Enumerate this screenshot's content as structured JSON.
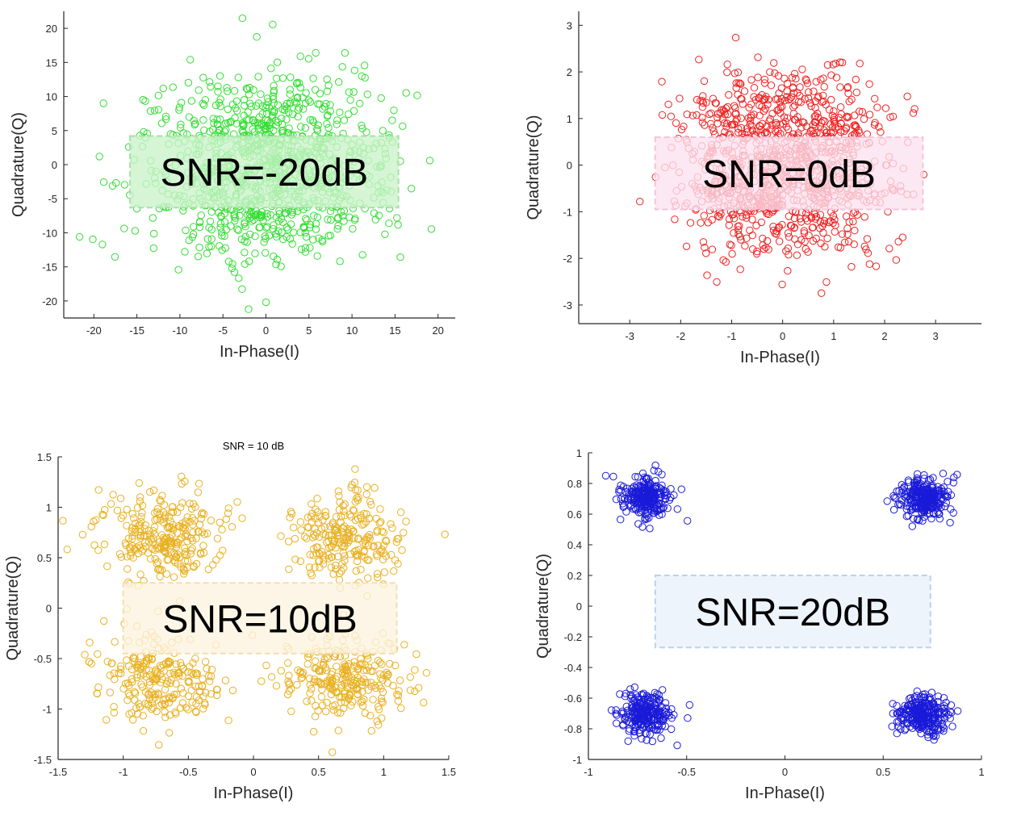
{
  "chart_data": [
    {
      "type": "scatter",
      "title": "",
      "xlabel": "In-Phase(I)",
      "ylabel": "Quadrature(Q)",
      "xlim": [
        -23.5,
        22
      ],
      "ylim": [
        -22.5,
        22.5
      ],
      "xticks": [
        -20,
        -15,
        -10,
        -5,
        0,
        5,
        10,
        15,
        20
      ],
      "yticks": [
        -20,
        -15,
        -10,
        -5,
        0,
        5,
        10,
        15,
        20
      ],
      "xtick_labels": [
        "-20",
        "-15",
        "-10",
        "-5",
        "0",
        "5",
        "10",
        "15",
        "20"
      ],
      "ytick_labels": [
        "-20",
        "-15",
        "-10",
        "-5",
        "0",
        "5",
        "10",
        "15",
        "20"
      ],
      "marker_color": "#33dd33",
      "annotation": {
        "text": "SNR=-20dB",
        "fill": "#c9f2c9",
        "border": "#a8e0a8",
        "x0": -15.8,
        "x1": 15.4,
        "y0": -6.3,
        "y1": 4.2
      },
      "constellation": [
        [
          0,
          0
        ]
      ],
      "noise_sigma": 6.8,
      "num_points": 1000,
      "seed": 11
    },
    {
      "type": "scatter",
      "title": "",
      "xlabel": "In-Phase(I)",
      "ylabel": "Quadrature(Q)",
      "xlim": [
        -4,
        3.9
      ],
      "ylim": [
        -3.4,
        3.3
      ],
      "xticks": [
        -3,
        -2,
        -1,
        0,
        1,
        2,
        3
      ],
      "yticks": [
        -3,
        -2,
        -1,
        0,
        1,
        2,
        3
      ],
      "xtick_labels": [
        "-3",
        "-2",
        "-1",
        "0",
        "1",
        "2",
        "3"
      ],
      "ytick_labels": [
        "-3",
        "-2",
        "-1",
        "0",
        "1",
        "2",
        "3"
      ],
      "marker_color": "#ee2222",
      "annotation": {
        "text": "SNR=0dB",
        "fill": "#fbe1ee",
        "border": "#f4c4d8",
        "x0": -2.5,
        "x1": 2.75,
        "y0": -0.95,
        "y1": 0.6
      },
      "constellation": [
        [
          0.707,
          0.707
        ],
        [
          -0.707,
          0.707
        ],
        [
          0.707,
          -0.707
        ],
        [
          -0.707,
          -0.707
        ]
      ],
      "noise_sigma": 0.72,
      "num_points": 1000,
      "seed": 23
    },
    {
      "type": "scatter",
      "title": "SNR = 10 dB",
      "xlabel": "In-Phase(I)",
      "ylabel": "Quadrature(Q)",
      "xlim": [
        -1.5,
        1.5
      ],
      "ylim": [
        -1.5,
        1.5
      ],
      "xticks": [
        -1.5,
        -1,
        -0.5,
        0,
        0.5,
        1,
        1.5
      ],
      "yticks": [
        -1.5,
        -1,
        -0.5,
        0,
        0.5,
        1,
        1.5
      ],
      "xtick_labels": [
        "-1.5",
        "-1",
        "-0.5",
        "0",
        "0.5",
        "1",
        "1.5"
      ],
      "ytick_labels": [
        "-1.5",
        "-1",
        "-0.5",
        "0",
        "0.5",
        "1",
        "1.5"
      ],
      "marker_color": "#e8b020",
      "annotation": {
        "text": "SNR=10dB",
        "fill": "#fdf3df",
        "border": "#f3deb0",
        "x0": -1.0,
        "x1": 1.1,
        "y0": -0.45,
        "y1": 0.25
      },
      "constellation": [
        [
          0.707,
          0.707
        ],
        [
          -0.707,
          0.707
        ],
        [
          0.707,
          -0.707
        ],
        [
          -0.707,
          -0.707
        ]
      ],
      "noise_sigma": 0.225,
      "num_points": 1000,
      "seed": 37
    },
    {
      "type": "scatter",
      "title": "",
      "xlabel": "In-Phase(I)",
      "ylabel": "Quadrature(Q)",
      "xlim": [
        -1,
        1
      ],
      "ylim": [
        -1,
        1
      ],
      "xticks": [
        -1,
        -0.5,
        0,
        0.5,
        1
      ],
      "yticks": [
        -1,
        -0.8,
        -0.6,
        -0.4,
        -0.2,
        0,
        0.2,
        0.4,
        0.6,
        0.8,
        1
      ],
      "xtick_labels": [
        "-1",
        "-0.5",
        "0",
        "0.5",
        "1"
      ],
      "ytick_labels": [
        "-1",
        "-0.8",
        "-0.6",
        "-0.4",
        "-0.2",
        "0",
        "0.2",
        "0.4",
        "0.6",
        "0.8",
        "1"
      ],
      "marker_color": "#1a1ad8",
      "annotation": {
        "text": "SNR=20dB",
        "fill": "#e9f1fb",
        "border": "#b7d3ee",
        "x0": -0.66,
        "x1": 0.74,
        "y0": -0.27,
        "y1": 0.2
      },
      "constellation": [
        [
          0.707,
          0.707
        ],
        [
          -0.707,
          0.707
        ],
        [
          0.707,
          -0.707
        ],
        [
          -0.707,
          -0.707
        ]
      ],
      "noise_sigma": 0.065,
      "num_points": 1000,
      "seed": 53
    }
  ]
}
